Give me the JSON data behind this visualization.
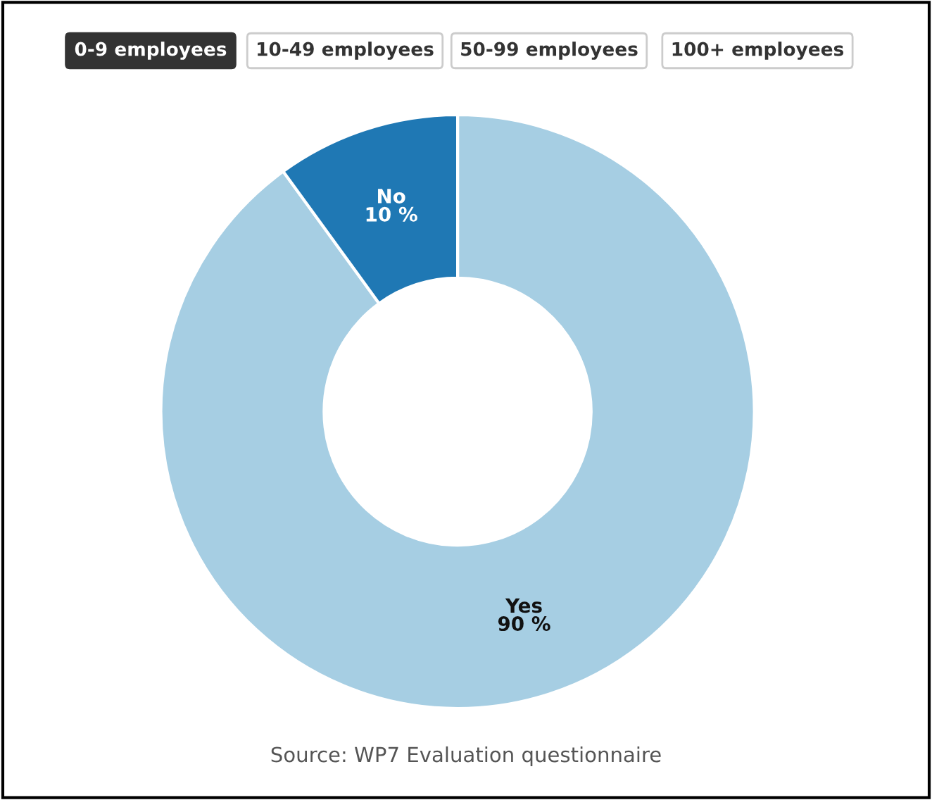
{
  "chart_data": {
    "type": "donut",
    "categories": [
      "Yes",
      "No"
    ],
    "values": [
      90,
      10
    ],
    "value_labels": [
      "90 %",
      "10 %"
    ],
    "colors": [
      "#a6cee3",
      "#1f78b4"
    ],
    "annotations": [
      "0-9 employees",
      "10-49 employees",
      "50-99 employees",
      "100+ employees",
      "Source: WP7 Evaluation questionnaire"
    ],
    "legend": false
  }
}
